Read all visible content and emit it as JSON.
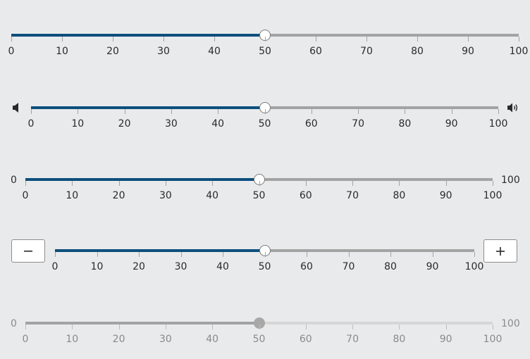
{
  "sliders": [
    {
      "variant": "plain",
      "value": 50,
      "min": 0,
      "max": 100,
      "ticks": [
        "0",
        "10",
        "20",
        "30",
        "40",
        "50",
        "60",
        "70",
        "80",
        "90",
        "100"
      ],
      "disabled": false
    },
    {
      "variant": "volume",
      "value": 50,
      "min": 0,
      "max": 100,
      "ticks": [
        "0",
        "10",
        "20",
        "30",
        "40",
        "50",
        "60",
        "70",
        "80",
        "90",
        "100"
      ],
      "start_icon": "volume-low-icon",
      "end_icon": "volume-high-icon",
      "disabled": false
    },
    {
      "variant": "labels",
      "value": 50,
      "min": 0,
      "max": 100,
      "ticks": [
        "0",
        "10",
        "20",
        "30",
        "40",
        "50",
        "60",
        "70",
        "80",
        "90",
        "100"
      ],
      "min_label": "0",
      "max_label": "100",
      "disabled": false
    },
    {
      "variant": "buttons",
      "value": 50,
      "min": 0,
      "max": 100,
      "ticks": [
        "0",
        "10",
        "20",
        "30",
        "40",
        "50",
        "60",
        "70",
        "80",
        "90",
        "100"
      ],
      "decrement_icon": "minus-icon",
      "increment_icon": "plus-icon",
      "disabled": false
    },
    {
      "variant": "labels-disabled",
      "value": 50,
      "min": 0,
      "max": 100,
      "ticks": [
        "0",
        "10",
        "20",
        "30",
        "40",
        "50",
        "60",
        "70",
        "80",
        "90",
        "100"
      ],
      "min_label": "0",
      "max_label": "100",
      "disabled": true
    }
  ],
  "colors": {
    "background": "#e9eaec",
    "fill": "#0d4f7c",
    "track": "#a3a3a3",
    "thumb": "#ffffff",
    "disabled_track": "#d6d6d6",
    "disabled_fill": "#a3a3a3"
  }
}
